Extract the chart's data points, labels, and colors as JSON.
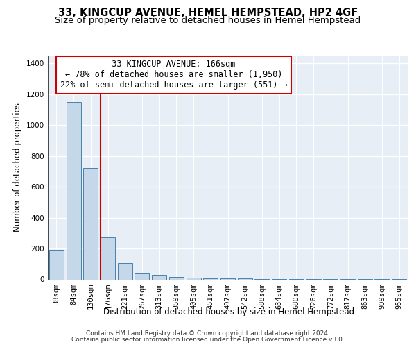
{
  "title1": "33, KINGCUP AVENUE, HEMEL HEMPSTEAD, HP2 4GF",
  "title2": "Size of property relative to detached houses in Hemel Hempstead",
  "xlabel": "Distribution of detached houses by size in Hemel Hempstead",
  "ylabel": "Number of detached properties",
  "footnote1": "Contains HM Land Registry data © Crown copyright and database right 2024.",
  "footnote2": "Contains public sector information licensed under the Open Government Licence v3.0.",
  "annotation_line1": "  33 KINGCUP AVENUE: 166sqm  ",
  "annotation_line2": "← 78% of detached houses are smaller (1,950)",
  "annotation_line3": "22% of semi-detached houses are larger (551) →",
  "bar_color": "#c5d8ea",
  "bar_edge_color": "#4a80aa",
  "bg_color": "#e8eef6",
  "grid_color": "#ffffff",
  "vline_color": "#cc0000",
  "annotation_box_edge": "#cc0000",
  "categories": [
    "38sqm",
    "84sqm",
    "130sqm",
    "176sqm",
    "221sqm",
    "267sqm",
    "313sqm",
    "359sqm",
    "405sqm",
    "451sqm",
    "497sqm",
    "542sqm",
    "588sqm",
    "634sqm",
    "680sqm",
    "726sqm",
    "772sqm",
    "817sqm",
    "863sqm",
    "909sqm",
    "955sqm"
  ],
  "values": [
    192,
    1150,
    720,
    270,
    107,
    40,
    30,
    15,
    10,
    8,
    5,
    5,
    3,
    3,
    2,
    2,
    1,
    1,
    1,
    1,
    1
  ],
  "ylim": [
    0,
    1450
  ],
  "yticks": [
    0,
    200,
    400,
    600,
    800,
    1000,
    1200,
    1400
  ],
  "vline_position": 2.58,
  "title1_fontsize": 10.5,
  "title2_fontsize": 9.5,
  "xlabel_fontsize": 8.5,
  "ylabel_fontsize": 8.5,
  "tick_fontsize": 7.5,
  "annotation_fontsize": 8.5,
  "footnote_fontsize": 6.5
}
